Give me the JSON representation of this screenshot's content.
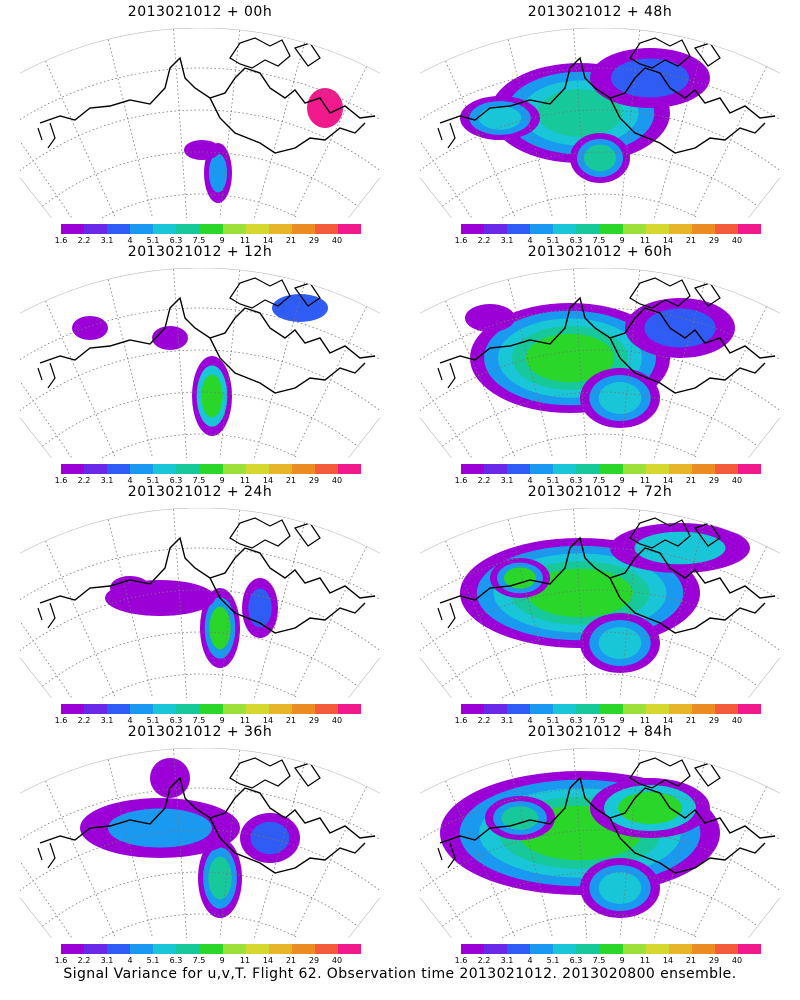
{
  "footer_text": "Signal Variance for u,v,T. Flight 62. Observation time 2013021012. 2013020800 ensemble.",
  "colorbar": {
    "labels": [
      "1.6",
      "2.2",
      "3.1",
      "4",
      "5.1",
      "6.3",
      "7.5",
      "9",
      "11",
      "14",
      "21",
      "29",
      "40"
    ],
    "colors": [
      "#9b00d6",
      "#6a28e8",
      "#2f5cf5",
      "#1a99f0",
      "#18c6d8",
      "#17c99a",
      "#2ad62a",
      "#9ce13a",
      "#d6d832",
      "#e6b52a",
      "#eb8c22",
      "#f25a3a",
      "#f01a8c"
    ]
  },
  "panels": [
    {
      "title": "2013021012 + 00h",
      "blobs": [
        {
          "cx": 198,
          "cy": 145,
          "rx": 14,
          "ry": 30,
          "levels": [
            0,
            3
          ]
        },
        {
          "cx": 182,
          "cy": 122,
          "rx": 18,
          "ry": 10,
          "levels": [
            0
          ]
        },
        {
          "cx": 305,
          "cy": 80,
          "rx": 18,
          "ry": 20,
          "levels": [
            12
          ]
        }
      ]
    },
    {
      "title": "2013021012 + 48h",
      "blobs": [
        {
          "cx": 160,
          "cy": 85,
          "rx": 90,
          "ry": 50,
          "levels": [
            0,
            3,
            4,
            5
          ]
        },
        {
          "cx": 80,
          "cy": 90,
          "rx": 40,
          "ry": 22,
          "levels": [
            0,
            3,
            4
          ]
        },
        {
          "cx": 180,
          "cy": 130,
          "rx": 30,
          "ry": 25,
          "levels": [
            0,
            3,
            5
          ]
        },
        {
          "cx": 230,
          "cy": 50,
          "rx": 60,
          "ry": 30,
          "levels": [
            0,
            2
          ]
        }
      ]
    },
    {
      "title": "2013021012 + 12h",
      "blobs": [
        {
          "cx": 192,
          "cy": 128,
          "rx": 20,
          "ry": 40,
          "levels": [
            0,
            4,
            6
          ]
        },
        {
          "cx": 150,
          "cy": 70,
          "rx": 18,
          "ry": 12,
          "levels": [
            0
          ]
        },
        {
          "cx": 70,
          "cy": 60,
          "rx": 18,
          "ry": 12,
          "levels": [
            0
          ]
        },
        {
          "cx": 280,
          "cy": 40,
          "rx": 28,
          "ry": 14,
          "levels": [
            2
          ]
        }
      ]
    },
    {
      "title": "2013021012 + 60h",
      "blobs": [
        {
          "cx": 150,
          "cy": 90,
          "rx": 100,
          "ry": 55,
          "levels": [
            0,
            3,
            4,
            5,
            6
          ]
        },
        {
          "cx": 200,
          "cy": 130,
          "rx": 40,
          "ry": 30,
          "levels": [
            0,
            3,
            4
          ]
        },
        {
          "cx": 70,
          "cy": 50,
          "rx": 25,
          "ry": 14,
          "levels": [
            0
          ]
        },
        {
          "cx": 260,
          "cy": 60,
          "rx": 55,
          "ry": 30,
          "levels": [
            0,
            2
          ]
        }
      ]
    },
    {
      "title": "2013021012 + 24h",
      "blobs": [
        {
          "cx": 200,
          "cy": 120,
          "rx": 20,
          "ry": 40,
          "levels": [
            0,
            3,
            6
          ]
        },
        {
          "cx": 140,
          "cy": 90,
          "rx": 55,
          "ry": 18,
          "levels": [
            0
          ]
        },
        {
          "cx": 240,
          "cy": 100,
          "rx": 18,
          "ry": 30,
          "levels": [
            0,
            2
          ]
        },
        {
          "cx": 110,
          "cy": 80,
          "rx": 20,
          "ry": 12,
          "levels": [
            0
          ]
        }
      ]
    },
    {
      "title": "2013021012 + 72h",
      "blobs": [
        {
          "cx": 160,
          "cy": 85,
          "rx": 120,
          "ry": 55,
          "levels": [
            0,
            3,
            4,
            5,
            6
          ]
        },
        {
          "cx": 100,
          "cy": 70,
          "rx": 30,
          "ry": 20,
          "levels": [
            0,
            3,
            6
          ]
        },
        {
          "cx": 200,
          "cy": 135,
          "rx": 40,
          "ry": 30,
          "levels": [
            0,
            3,
            4
          ]
        },
        {
          "cx": 260,
          "cy": 40,
          "rx": 70,
          "ry": 25,
          "levels": [
            0,
            4
          ]
        }
      ]
    },
    {
      "title": "2013021012 + 36h",
      "blobs": [
        {
          "cx": 200,
          "cy": 130,
          "rx": 22,
          "ry": 40,
          "levels": [
            0,
            3,
            5
          ]
        },
        {
          "cx": 140,
          "cy": 80,
          "rx": 80,
          "ry": 30,
          "levels": [
            0,
            3
          ]
        },
        {
          "cx": 250,
          "cy": 90,
          "rx": 30,
          "ry": 25,
          "levels": [
            0,
            2
          ]
        },
        {
          "cx": 150,
          "cy": 30,
          "rx": 20,
          "ry": 20,
          "levels": [
            0
          ]
        }
      ]
    },
    {
      "title": "2013021012 + 84h",
      "blobs": [
        {
          "cx": 160,
          "cy": 85,
          "rx": 140,
          "ry": 62,
          "levels": [
            0,
            3,
            4,
            5,
            6
          ]
        },
        {
          "cx": 230,
          "cy": 60,
          "rx": 60,
          "ry": 30,
          "levels": [
            0,
            4,
            6
          ]
        },
        {
          "cx": 200,
          "cy": 140,
          "rx": 40,
          "ry": 30,
          "levels": [
            0,
            3,
            4
          ]
        },
        {
          "cx": 100,
          "cy": 70,
          "rx": 35,
          "ry": 22,
          "levels": [
            0,
            3,
            5
          ]
        }
      ]
    }
  ]
}
